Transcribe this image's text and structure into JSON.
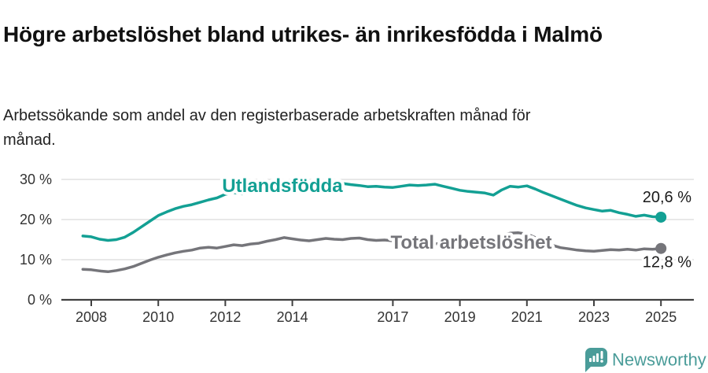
{
  "header": {
    "title": "Högre arbetslöshet bland utrikes- än inrikesfödda i Malmö",
    "subtitle": "Arbetssökande som andel av den registerbaserade arbetskraften månad för månad."
  },
  "chart_data": {
    "type": "line",
    "title": "Högre arbetslöshet bland utrikes- än inrikesfödda i Malmö",
    "subtitle": "Arbetssökande som andel av den registerbaserade arbetskraften månad för månad.",
    "unit": "%",
    "grid": "horizontal",
    "x_axis": {
      "ticks": [
        {
          "value": 2008,
          "label": "2008"
        },
        {
          "value": 2010,
          "label": "2010"
        },
        {
          "value": 2012,
          "label": "2012"
        },
        {
          "value": 2014,
          "label": "2014"
        },
        {
          "value": 2017,
          "label": "2017"
        },
        {
          "value": 2019,
          "label": "2019"
        },
        {
          "value": 2021,
          "label": "2021"
        },
        {
          "value": 2023,
          "label": "2023"
        },
        {
          "value": 2025,
          "label": "2025"
        }
      ],
      "range": [
        2007.6,
        2026
      ]
    },
    "y_axis": {
      "ticks": [
        {
          "value": 0,
          "label": "0 %"
        },
        {
          "value": 10,
          "label": "10 %"
        },
        {
          "value": 20,
          "label": "20 %"
        },
        {
          "value": 30,
          "label": "30 %"
        }
      ],
      "range": [
        0,
        32
      ]
    },
    "series": [
      {
        "name": "Utlandsfödda",
        "color": "#13A094",
        "x_start": 2007.75,
        "x_step": 0.25,
        "values": [
          15.9,
          15.7,
          15.1,
          14.8,
          15.0,
          15.6,
          16.8,
          18.2,
          19.6,
          21.0,
          21.9,
          22.7,
          23.3,
          23.7,
          24.3,
          24.9,
          25.4,
          26.3,
          26.7,
          26.4,
          26.8,
          27.0,
          27.3,
          27.2,
          27.5,
          27.6,
          27.9,
          28.1,
          28.0,
          28.2,
          28.6,
          29.0,
          28.7,
          28.5,
          28.2,
          28.3,
          28.1,
          28.0,
          28.3,
          28.6,
          28.5,
          28.6,
          28.8,
          28.3,
          27.8,
          27.3,
          27.0,
          26.8,
          26.6,
          26.1,
          27.4,
          28.3,
          28.1,
          28.4,
          27.6,
          26.7,
          25.9,
          25.1,
          24.3,
          23.5,
          22.9,
          22.5,
          22.1,
          22.3,
          21.7,
          21.3,
          20.8,
          21.1,
          20.7,
          20.6
        ],
        "end_value": 20.6,
        "end_label": "20,6 %",
        "end_label_side": "above",
        "inline_label": {
          "text": "Utlandsfödda",
          "x": 359,
          "y": 244,
          "anchor": "middle"
        }
      },
      {
        "name": "Total arbetslöshet",
        "color": "#75757A",
        "x_start": 2007.75,
        "x_step": 0.25,
        "values": [
          7.6,
          7.5,
          7.2,
          7.0,
          7.3,
          7.7,
          8.3,
          9.1,
          9.9,
          10.6,
          11.2,
          11.7,
          12.1,
          12.4,
          12.9,
          13.1,
          12.9,
          13.3,
          13.7,
          13.5,
          13.9,
          14.1,
          14.6,
          15.0,
          15.5,
          15.2,
          14.9,
          14.7,
          15.0,
          15.3,
          15.1,
          15.0,
          15.3,
          15.4,
          15.0,
          14.8,
          14.9,
          14.7,
          14.5,
          14.3,
          14.4,
          14.2,
          14.0,
          13.9,
          14.1,
          14.0,
          13.9,
          14.0,
          14.2,
          14.5,
          16.0,
          16.6,
          16.7,
          16.4,
          15.5,
          14.4,
          13.6,
          13.0,
          12.7,
          12.4,
          12.2,
          12.1,
          12.3,
          12.5,
          12.4,
          12.6,
          12.4,
          12.7,
          12.6,
          12.8
        ],
        "end_value": 12.8,
        "end_label": "12,8 %",
        "end_label_side": "below",
        "inline_label": {
          "text": "Total arbetslöshet",
          "x": 599,
          "y": 316,
          "anchor": "middle"
        }
      }
    ],
    "colors": {
      "grid": "#D9D9D9",
      "axis": "#404040",
      "tick_label": "#333333",
      "end_label": "#1A1A1A"
    }
  },
  "footer": {
    "brand": "Newsworthy",
    "brand_color": "#4A9C99",
    "logo_icon": "speech-bubble-bar-chart-icon"
  }
}
